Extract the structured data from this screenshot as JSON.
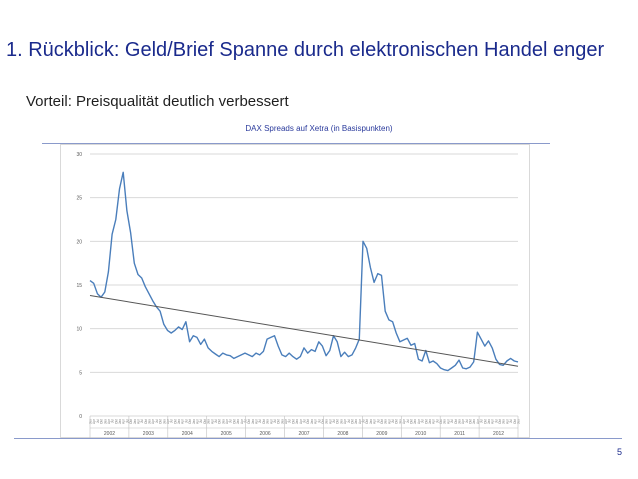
{
  "slide": {
    "title": "1. Rückblick: Geld/Brief Spanne durch elektronischen Handel enger",
    "subtitle": "Vorteil: Preisqualität deutlich verbessert",
    "page_number": "5"
  },
  "colors": {
    "title": "#1a2a8c",
    "series": "#4a7ebb",
    "trendline": "#555555",
    "grid": "#d9d9d9",
    "rule": "#8a9acb"
  },
  "chart_data": {
    "type": "line",
    "title": "DAX Spreads auf Xetra (in Basispunkten)",
    "xlabel": "",
    "ylabel": "",
    "ylim": [
      0,
      30
    ],
    "yticks": [
      0,
      5,
      10,
      15,
      20,
      25,
      30
    ],
    "grid": "horizontal",
    "years": [
      "2002",
      "2003",
      "2004",
      "2005",
      "2006",
      "2007",
      "2008",
      "2009",
      "2010",
      "2011",
      "2012"
    ],
    "month_ticks": [
      "Jan",
      "Apr",
      "Jul",
      "Okt"
    ],
    "series": [
      {
        "values": [
          15.5,
          15.2,
          14.0,
          13.6,
          14.2,
          16.5,
          20.8,
          22.5,
          26.0,
          27.9,
          23.5,
          21.0,
          17.5,
          16.2,
          15.8,
          14.8,
          14.0,
          13.2,
          12.5,
          12.0,
          10.5,
          9.8,
          9.5,
          9.8,
          10.2,
          9.9,
          10.8,
          8.5,
          9.2,
          9.0,
          8.2,
          8.8,
          7.8,
          7.4,
          7.1,
          6.8,
          7.2,
          7.0,
          6.9,
          6.6,
          6.8,
          7.0,
          7.2,
          7.0,
          6.8,
          7.2,
          7.0,
          7.4,
          8.8,
          9.0,
          9.2,
          8.0,
          7.0,
          6.8,
          7.2,
          6.8,
          6.5,
          6.8,
          7.8,
          7.2,
          7.6,
          7.4,
          8.5,
          8.0,
          6.9,
          7.5,
          9.2,
          8.5,
          6.8,
          7.3,
          6.8,
          7.0,
          7.8,
          8.8,
          20.0,
          19.2,
          17.0,
          15.3,
          16.3,
          16.1,
          12.0,
          11.0,
          10.8,
          9.5,
          8.5,
          8.7,
          8.9,
          8.1,
          8.3,
          6.5,
          6.3,
          7.5,
          6.1,
          6.3,
          6.0,
          5.5,
          5.3,
          5.2,
          5.5,
          5.8,
          6.4,
          5.5,
          5.4,
          5.6,
          6.2,
          9.6,
          8.8,
          8.0,
          8.6,
          7.8,
          6.5,
          5.9,
          5.8,
          6.3,
          6.6,
          6.3,
          6.2
        ]
      }
    ],
    "trendline": {
      "start": 13.8,
      "end": 5.7
    }
  }
}
